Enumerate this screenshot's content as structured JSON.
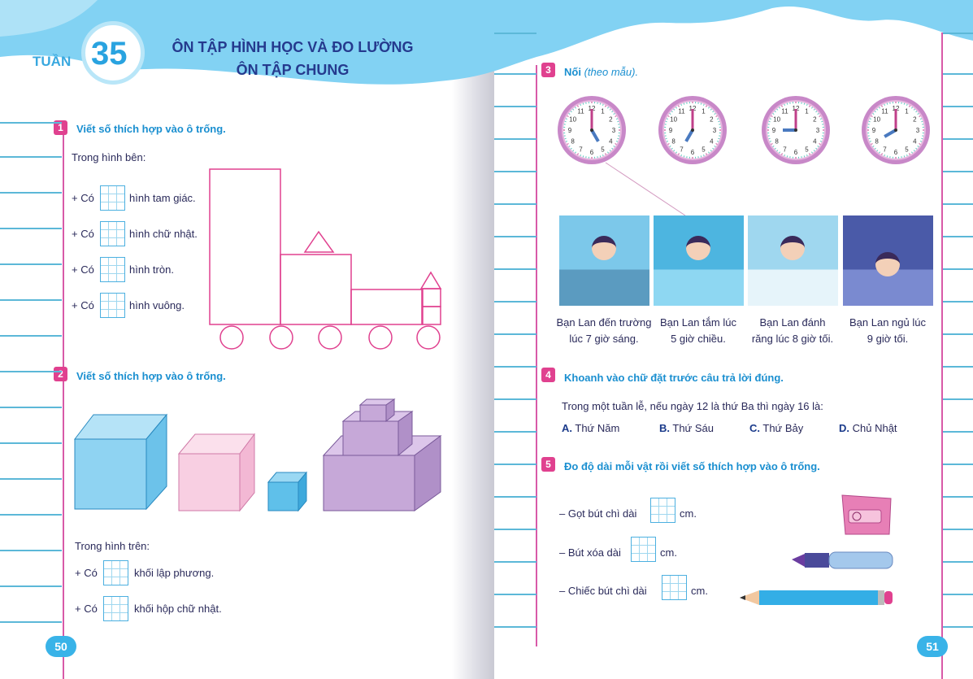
{
  "header": {
    "week_label": "TUẦN",
    "week_number": "35",
    "title_line1": "ÔN TẬP HÌNH HỌC VÀ ĐO LƯỜNG",
    "title_line2": "ÔN TẬP CHUNG"
  },
  "q1": {
    "number": "1",
    "title": "Viết số thích hợp vào ô trống.",
    "intro": "Trong hình bên:",
    "prefix": "+ Có",
    "items": [
      "hình tam giác.",
      "hình chữ nhật.",
      "hình tròn.",
      "hình vuông."
    ]
  },
  "q2": {
    "number": "2",
    "title": "Viết số thích hợp vào ô trống.",
    "intro": "Trong hình trên:",
    "prefix": "+ Có",
    "items": [
      "khối lập phương.",
      "khối hộp chữ nhật."
    ]
  },
  "q3": {
    "number": "3",
    "title": "Nối",
    "title_note": "(theo mẫu).",
    "clock_hours": [
      5,
      7,
      9,
      8
    ],
    "captions": [
      [
        "Bạn Lan đến trường",
        "lúc 7 giờ sáng."
      ],
      [
        "Bạn Lan tắm lúc",
        "5 giờ chiều."
      ],
      [
        "Bạn Lan đánh",
        "răng lúc 8 giờ tối."
      ],
      [
        "Bạn Lan ngủ lúc",
        "9 giờ tối."
      ]
    ]
  },
  "q4": {
    "number": "4",
    "title": "Khoanh vào chữ đặt trước câu trả lời đúng.",
    "question": "Trong một tuần lễ, nếu ngày 12 là thứ Ba thì ngày 16 là:",
    "options": [
      {
        "letter": "A.",
        "text": "Thứ Năm"
      },
      {
        "letter": "B.",
        "text": "Thứ Sáu"
      },
      {
        "letter": "C.",
        "text": "Thứ Bảy"
      },
      {
        "letter": "D.",
        "text": "Chủ Nhật"
      }
    ]
  },
  "q5": {
    "number": "5",
    "title": "Đo độ dài mỗi vật rồi viết số thích hợp vào ô trống.",
    "items": [
      {
        "label": "– Gọt bút chì dài",
        "unit": "cm."
      },
      {
        "label": "– Bút xóa dài",
        "unit": "cm."
      },
      {
        "label": "– Chiếc bút chì dài",
        "unit": "cm."
      }
    ]
  },
  "pages": {
    "left": "50",
    "right": "51"
  },
  "colors": {
    "accent_blue": "#1a8fd0",
    "badge_pink": "#e0418f",
    "header_blue": "#7fd0f2"
  }
}
